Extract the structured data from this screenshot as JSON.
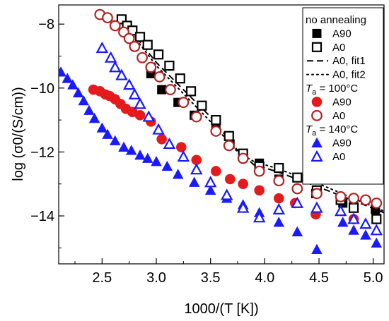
{
  "chart_data": {
    "type": "scatter",
    "xlabel": "1000/(T [K])",
    "ylabel": "log (σ0/(S/cm))",
    "xlim": [
      2.1,
      5.1
    ],
    "ylim": [
      -15.5,
      -7.4
    ],
    "x_ticks": [
      "2.5",
      "3.0",
      "3.5",
      "4.0",
      "4.5",
      "5.0"
    ],
    "y_ticks": [
      "−8",
      "−10",
      "−12",
      "−14"
    ],
    "x_tick_values": [
      2.5,
      3.0,
      3.5,
      4.0,
      4.5,
      5.0
    ],
    "y_tick_values": [
      -8,
      -10,
      -12,
      -14
    ],
    "grid": false,
    "legend_position": "top-right",
    "legend": {
      "groups": [
        {
          "header_main": "no annealing",
          "header_sub": "",
          "header_tail": ""
        },
        {
          "header_main": "T",
          "header_sub": "a",
          "header_tail": " = 100°C"
        },
        {
          "header_main": "T",
          "header_sub": "a",
          "header_tail": " = 140°C"
        }
      ]
    },
    "series": [
      {
        "name": "A90",
        "group": 0,
        "marker": "square",
        "filled": true,
        "color": "#000000",
        "x": [
          2.95,
          3.05,
          3.2,
          3.35,
          3.55,
          3.68,
          3.8,
          3.95,
          4.13,
          4.47,
          4.72,
          4.82,
          5.02
        ],
        "y": [
          -9.55,
          -10.05,
          -10.45,
          -10.85,
          -11.3,
          -11.75,
          -12.1,
          -12.35,
          -12.85,
          -13.3,
          -13.6,
          -13.65,
          -13.8
        ]
      },
      {
        "name": "A0",
        "group": 0,
        "marker": "square",
        "filled": false,
        "color": "#000000",
        "x": [
          2.68,
          2.73,
          2.78,
          2.85,
          2.92,
          3.02,
          3.12,
          3.22,
          3.32,
          3.42,
          3.55,
          3.67,
          3.8,
          3.95,
          4.13,
          4.3,
          4.48,
          4.7,
          4.82,
          5.03
        ],
        "y": [
          -7.85,
          -8.05,
          -8.2,
          -8.4,
          -8.65,
          -8.95,
          -9.3,
          -9.7,
          -10.1,
          -10.55,
          -11.0,
          -11.5,
          -12.05,
          -12.45,
          -12.5,
          -12.8,
          -13.2,
          -13.5,
          -13.75,
          -14.1
        ]
      },
      {
        "name": "A90",
        "group": 1,
        "marker": "circle",
        "filled": true,
        "color": "#e41a1c",
        "x": [
          2.42,
          2.48,
          2.53,
          2.57,
          2.62,
          2.67,
          2.72,
          2.78,
          2.85,
          2.95,
          3.05,
          3.23,
          3.37,
          3.55,
          3.68,
          3.8,
          3.95,
          4.13,
          4.28,
          4.47,
          4.82
        ],
        "y": [
          -10.05,
          -10.1,
          -10.2,
          -10.25,
          -10.35,
          -10.5,
          -10.65,
          -10.75,
          -10.85,
          -11.05,
          -11.6,
          -11.85,
          -12.25,
          -12.6,
          -12.85,
          -13.0,
          -13.2,
          -13.45,
          -13.6,
          -13.95,
          -14.1
        ]
      },
      {
        "name": "A0",
        "group": 1,
        "marker": "circle",
        "filled": false,
        "color": "#b22222",
        "x": [
          2.48,
          2.55,
          2.62,
          2.7,
          2.75,
          2.8,
          2.87,
          2.95,
          3.03,
          3.13,
          3.25,
          3.37,
          3.55,
          3.67,
          3.8,
          3.95,
          4.13,
          4.3,
          4.48,
          4.7,
          4.82,
          4.93,
          5.03
        ],
        "y": [
          -7.7,
          -7.8,
          -8.05,
          -8.25,
          -8.45,
          -8.7,
          -9.05,
          -9.35,
          -9.65,
          -10.05,
          -10.45,
          -10.9,
          -11.35,
          -11.8,
          -12.2,
          -12.6,
          -12.9,
          -13.15,
          -13.3,
          -13.4,
          -13.45,
          -13.5,
          -13.6
        ]
      },
      {
        "name": "A90",
        "group": 2,
        "marker": "triangle",
        "filled": true,
        "color": "#1a1aff",
        "x": [
          2.12,
          2.18,
          2.23,
          2.28,
          2.33,
          2.38,
          2.43,
          2.5,
          2.55,
          2.62,
          2.7,
          2.77,
          2.85,
          2.92,
          3.0,
          3.1,
          3.2,
          3.35,
          3.5,
          3.65,
          3.8,
          3.95,
          4.13,
          4.3,
          4.48,
          4.72,
          4.82,
          4.93,
          5.03
        ],
        "y": [
          -9.5,
          -9.7,
          -9.9,
          -10.15,
          -10.4,
          -10.7,
          -10.95,
          -11.25,
          -11.45,
          -11.65,
          -11.85,
          -11.95,
          -12.1,
          -12.2,
          -12.3,
          -12.45,
          -12.7,
          -12.95,
          -13.2,
          -13.45,
          -13.65,
          -13.9,
          -14.2,
          -14.5,
          -15.05,
          -14.2,
          -14.45,
          -14.6,
          -14.85
        ]
      },
      {
        "name": "A0",
        "group": 2,
        "marker": "triangle",
        "filled": false,
        "color": "#1a1aff",
        "x": [
          2.5,
          2.58,
          2.62,
          2.68,
          2.75,
          2.8,
          2.85,
          2.93,
          3.02,
          3.12,
          3.25,
          3.37,
          3.5,
          3.65,
          3.8,
          3.95,
          4.13,
          4.3,
          4.48,
          4.7,
          4.82,
          4.93,
          5.03
        ],
        "y": [
          -8.75,
          -9.05,
          -9.35,
          -9.6,
          -9.9,
          -10.2,
          -10.5,
          -10.9,
          -11.3,
          -11.75,
          -12.15,
          -12.55,
          -12.95,
          -13.35,
          -13.75,
          -14.05,
          -13.8,
          -13.6,
          -13.75,
          -13.85,
          -14.1,
          -14.25,
          -14.45
        ]
      }
    ],
    "fits": [
      {
        "name": "A0, fit1",
        "style": "dashed",
        "color": "#000000",
        "x": [
          2.65,
          3.0,
          3.5,
          3.75,
          3.9,
          4.1,
          4.5,
          5.1
        ],
        "y": [
          -7.7,
          -9.2,
          -10.9,
          -11.95,
          -12.4,
          -12.6,
          -13.1,
          -13.9
        ]
      },
      {
        "name": "A0, fit2",
        "style": "dotted",
        "color": "#000000",
        "x": [
          2.65,
          3.0,
          3.5,
          3.75,
          3.9,
          4.1,
          4.5,
          5.1
        ],
        "y": [
          -7.75,
          -9.3,
          -11.05,
          -12.0,
          -12.3,
          -12.5,
          -13.0,
          -13.85
        ]
      }
    ]
  }
}
